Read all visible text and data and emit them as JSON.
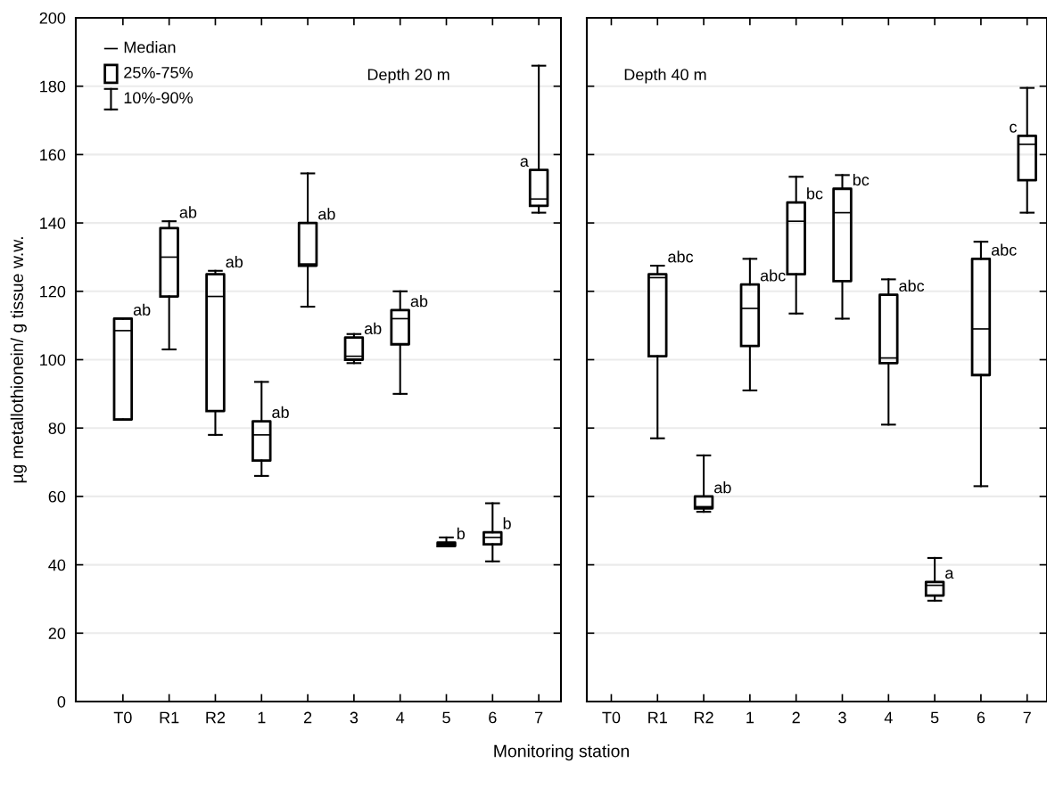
{
  "chart_data": [
    {
      "type": "box",
      "title": "Depth 20 m",
      "xlabel": "Monitoring station",
      "ylabel": "µg metallothionein/ g tissue w.w.",
      "categories": [
        "T0",
        "R1",
        "R2",
        "1",
        "2",
        "3",
        "4",
        "5",
        "6",
        "7"
      ],
      "boxes": [
        {
          "low": 82.5,
          "q1": 82.5,
          "median": 108.5,
          "q3": 112,
          "high": 112
        },
        {
          "low": 103,
          "q1": 118.5,
          "median": 130,
          "q3": 138.5,
          "high": 140.5
        },
        {
          "low": 78,
          "q1": 85,
          "median": 118.5,
          "q3": 125,
          "high": 126
        },
        {
          "low": 66,
          "q1": 70.5,
          "median": 78,
          "q3": 82,
          "high": 93.5
        },
        {
          "low": 115.5,
          "q1": 127.5,
          "median": 128,
          "q3": 140,
          "high": 154.5
        },
        {
          "low": 99,
          "q1": 100,
          "median": 101,
          "q3": 106.5,
          "high": 107.5
        },
        {
          "low": 90,
          "q1": 104.5,
          "median": 112,
          "q3": 114.5,
          "high": 120
        },
        {
          "low": 45.5,
          "q1": 45.5,
          "median": 46,
          "q3": 46.5,
          "high": 48
        },
        {
          "low": 41,
          "q1": 46,
          "median": 48,
          "q3": 49.5,
          "high": 58
        },
        {
          "low": 143,
          "q1": 145,
          "median": 147,
          "q3": 155.5,
          "high": 186
        }
      ],
      "color": "#000000",
      "ylim": [
        0,
        200
      ],
      "yticks": [
        0,
        20,
        40,
        60,
        80,
        100,
        120,
        140,
        160,
        180,
        200
      ],
      "grid": "y",
      "annotations": [
        "Median",
        "25%-75%",
        "10%-90%",
        {
          "text": "ab",
          "x": "T0",
          "y": 112
        },
        {
          "text": "ab",
          "x": "R1",
          "y": 140.5
        },
        {
          "text": "ab",
          "x": "R2",
          "y": 126
        },
        {
          "text": "ab",
          "x": "1",
          "y": 82
        },
        {
          "text": "ab",
          "x": "2",
          "y": 140
        },
        {
          "text": "ab",
          "x": "3",
          "y": 106.5
        },
        {
          "text": "ab",
          "x": "4",
          "y": 114.5
        },
        {
          "text": "b",
          "x": "5",
          "y": 46.5
        },
        {
          "text": "b",
          "x": "6",
          "y": 49.5
        },
        {
          "text": "a",
          "x": "7",
          "y": 155.5
        }
      ]
    },
    {
      "type": "box",
      "title": "Depth 40 m",
      "categories": [
        "T0",
        "R1",
        "R2",
        "1",
        "2",
        "3",
        "4",
        "5",
        "6",
        "7"
      ],
      "boxes": [
        null,
        {
          "low": 77,
          "q1": 101,
          "median": 124,
          "q3": 125,
          "high": 127.5
        },
        {
          "low": 55.5,
          "q1": 56.5,
          "median": 57,
          "q3": 60,
          "high": 72
        },
        {
          "low": 91,
          "q1": 104,
          "median": 115,
          "q3": 122,
          "high": 129.5
        },
        {
          "low": 113.5,
          "q1": 125,
          "median": 140.5,
          "q3": 146,
          "high": 153.5
        },
        {
          "low": 112,
          "q1": 123,
          "median": 143,
          "q3": 150,
          "high": 154
        },
        {
          "low": 81,
          "q1": 99,
          "median": 100.5,
          "q3": 119,
          "high": 123.5
        },
        {
          "low": 29.5,
          "q1": 31,
          "median": 34,
          "q3": 35,
          "high": 42
        },
        {
          "low": 63,
          "q1": 95.5,
          "median": 109,
          "q3": 129.5,
          "high": 134.5
        },
        {
          "low": 143,
          "q1": 152.5,
          "median": 163,
          "q3": 165.5,
          "high": 179.5
        }
      ],
      "color": "#000000",
      "ylim": [
        0,
        200
      ],
      "yticks": [
        0,
        20,
        40,
        60,
        80,
        100,
        120,
        140,
        160,
        180,
        200
      ],
      "grid": "y",
      "tick_labels": "x",
      "annotations": [
        {
          "text": "abc",
          "x": "R1",
          "y": 127.5
        },
        {
          "text": "ab",
          "x": "R2",
          "y": 60
        },
        {
          "text": "abc",
          "x": "1",
          "y": 122
        },
        {
          "text": "bc",
          "x": "2",
          "y": 146
        },
        {
          "text": "bc",
          "x": "3",
          "y": 150
        },
        {
          "text": "abc",
          "x": "4",
          "y": 119
        },
        {
          "text": "a",
          "x": "5",
          "y": 35
        },
        {
          "text": "abc",
          "x": "6",
          "y": 129.5
        },
        {
          "text": "c",
          "x": "7",
          "y": 165.5
        }
      ]
    }
  ]
}
